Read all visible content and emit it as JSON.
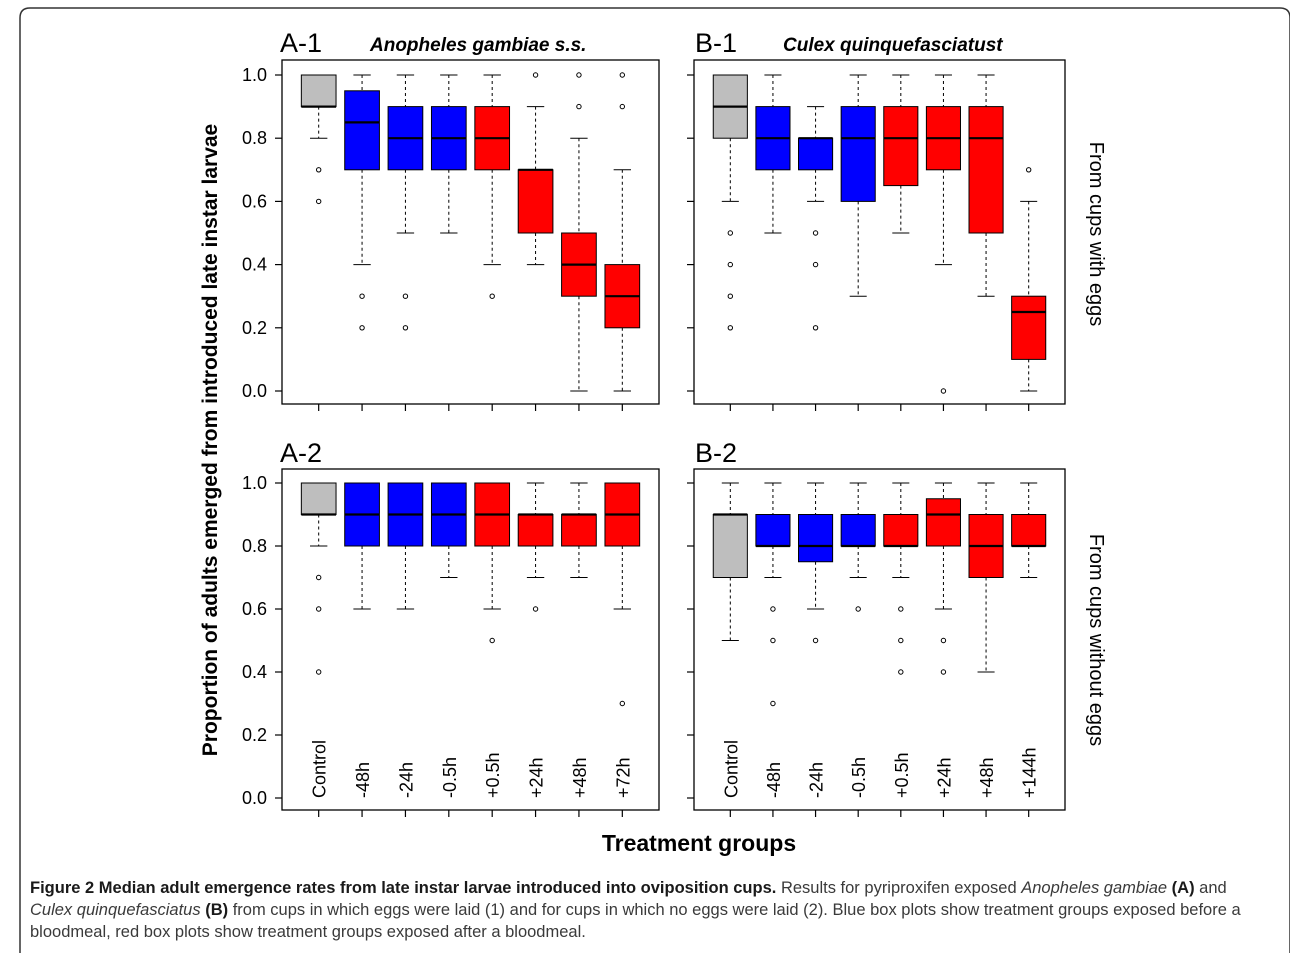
{
  "chart_data": {
    "type": "box",
    "ylabel": "Proportion of adults emerged from introduced late instar larvae",
    "xlabel": "Treatment groups",
    "ylim": [
      0,
      1
    ],
    "yticks": [
      "0.0",
      "0.2",
      "0.4",
      "0.6",
      "0.8",
      "1.0"
    ],
    "grid": false,
    "colors": {
      "control": "#bebebe",
      "before": "#0000ff",
      "after": "#ff0000"
    },
    "row_labels": [
      "From cups with eggs",
      "From cups without eggs"
    ],
    "panels": [
      {
        "id": "A-1",
        "title": "Anopheles gambiae s.s.",
        "categories": [
          "Control",
          "-48h",
          "-24h",
          "-0.5h",
          "+0.5h",
          "+24h",
          "+48h",
          "+72h"
        ],
        "groups": [
          "control",
          "before",
          "before",
          "before",
          "after",
          "after",
          "after",
          "after"
        ],
        "boxes": [
          {
            "q1": 0.9,
            "median": 0.9,
            "q3": 1.0,
            "wlo": 0.8,
            "whi": 1.0,
            "out": [
              0.7,
              0.6
            ]
          },
          {
            "q1": 0.7,
            "median": 0.85,
            "q3": 0.95,
            "wlo": 0.4,
            "whi": 1.0,
            "out": [
              0.3,
              0.2
            ]
          },
          {
            "q1": 0.7,
            "median": 0.8,
            "q3": 0.9,
            "wlo": 0.5,
            "whi": 1.0,
            "out": [
              0.3,
              0.2
            ]
          },
          {
            "q1": 0.7,
            "median": 0.8,
            "q3": 0.9,
            "wlo": 0.5,
            "whi": 1.0,
            "out": []
          },
          {
            "q1": 0.7,
            "median": 0.8,
            "q3": 0.9,
            "wlo": 0.4,
            "whi": 1.0,
            "out": [
              0.3
            ]
          },
          {
            "q1": 0.5,
            "median": 0.7,
            "q3": 0.7,
            "wlo": 0.4,
            "whi": 0.9,
            "out": [
              1.0
            ]
          },
          {
            "q1": 0.3,
            "median": 0.4,
            "q3": 0.5,
            "wlo": 0.0,
            "whi": 0.8,
            "out": [
              1.0,
              0.9
            ]
          },
          {
            "q1": 0.2,
            "median": 0.3,
            "q3": 0.4,
            "wlo": 0.0,
            "whi": 0.7,
            "out": [
              1.0,
              0.9
            ]
          }
        ]
      },
      {
        "id": "B-1",
        "title": "Culex quinquefasciatust",
        "categories": [
          "Control",
          "-48h",
          "-24h",
          "-0.5h",
          "+0.5h",
          "+24h",
          "+48h",
          "+144h"
        ],
        "groups": [
          "control",
          "before",
          "before",
          "before",
          "after",
          "after",
          "after",
          "after"
        ],
        "boxes": [
          {
            "q1": 0.8,
            "median": 0.9,
            "q3": 1.0,
            "wlo": 0.6,
            "whi": 1.0,
            "out": [
              0.5,
              0.4,
              0.3,
              0.2
            ]
          },
          {
            "q1": 0.7,
            "median": 0.8,
            "q3": 0.9,
            "wlo": 0.5,
            "whi": 1.0,
            "out": []
          },
          {
            "q1": 0.7,
            "median": 0.8,
            "q3": 0.8,
            "wlo": 0.6,
            "whi": 0.9,
            "out": [
              0.5,
              0.4,
              0.2
            ]
          },
          {
            "q1": 0.6,
            "median": 0.8,
            "q3": 0.9,
            "wlo": 0.3,
            "whi": 1.0,
            "out": []
          },
          {
            "q1": 0.65,
            "median": 0.8,
            "q3": 0.9,
            "wlo": 0.5,
            "whi": 1.0,
            "out": []
          },
          {
            "q1": 0.7,
            "median": 0.8,
            "q3": 0.9,
            "wlo": 0.4,
            "whi": 1.0,
            "out": [
              0.0
            ]
          },
          {
            "q1": 0.5,
            "median": 0.8,
            "q3": 0.9,
            "wlo": 0.3,
            "whi": 1.0,
            "out": []
          },
          {
            "q1": 0.1,
            "median": 0.25,
            "q3": 0.3,
            "wlo": 0.0,
            "whi": 0.6,
            "out": [
              0.7
            ]
          }
        ]
      },
      {
        "id": "A-2",
        "title": "",
        "categories": [
          "Control",
          "-48h",
          "-24h",
          "-0.5h",
          "+0.5h",
          "+24h",
          "+48h",
          "+72h"
        ],
        "groups": [
          "control",
          "before",
          "before",
          "before",
          "after",
          "after",
          "after",
          "after"
        ],
        "boxes": [
          {
            "q1": 0.9,
            "median": 0.9,
            "q3": 1.0,
            "wlo": 0.8,
            "whi": 1.0,
            "out": [
              0.7,
              0.6,
              0.4
            ]
          },
          {
            "q1": 0.8,
            "median": 0.9,
            "q3": 1.0,
            "wlo": 0.6,
            "whi": 1.0,
            "out": []
          },
          {
            "q1": 0.8,
            "median": 0.9,
            "q3": 1.0,
            "wlo": 0.6,
            "whi": 1.0,
            "out": []
          },
          {
            "q1": 0.8,
            "median": 0.9,
            "q3": 1.0,
            "wlo": 0.7,
            "whi": 1.0,
            "out": []
          },
          {
            "q1": 0.8,
            "median": 0.9,
            "q3": 1.0,
            "wlo": 0.6,
            "whi": 1.0,
            "out": [
              0.5
            ]
          },
          {
            "q1": 0.8,
            "median": 0.9,
            "q3": 0.9,
            "wlo": 0.7,
            "whi": 1.0,
            "out": [
              0.6
            ]
          },
          {
            "q1": 0.8,
            "median": 0.9,
            "q3": 0.9,
            "wlo": 0.7,
            "whi": 1.0,
            "out": []
          },
          {
            "q1": 0.8,
            "median": 0.9,
            "q3": 1.0,
            "wlo": 0.6,
            "whi": 1.0,
            "out": [
              0.3
            ]
          }
        ]
      },
      {
        "id": "B-2",
        "title": "",
        "categories": [
          "Control",
          "-48h",
          "-24h",
          "-0.5h",
          "+0.5h",
          "+24h",
          "+48h",
          "+144h"
        ],
        "groups": [
          "control",
          "before",
          "before",
          "before",
          "after",
          "after",
          "after",
          "after"
        ],
        "boxes": [
          {
            "q1": 0.7,
            "median": 0.9,
            "q3": 0.9,
            "wlo": 0.5,
            "whi": 1.0,
            "out": []
          },
          {
            "q1": 0.8,
            "median": 0.8,
            "q3": 0.9,
            "wlo": 0.7,
            "whi": 1.0,
            "out": [
              0.6,
              0.5,
              0.3
            ]
          },
          {
            "q1": 0.75,
            "median": 0.8,
            "q3": 0.9,
            "wlo": 0.6,
            "whi": 1.0,
            "out": [
              0.5
            ]
          },
          {
            "q1": 0.8,
            "median": 0.8,
            "q3": 0.9,
            "wlo": 0.7,
            "whi": 1.0,
            "out": [
              0.6
            ]
          },
          {
            "q1": 0.8,
            "median": 0.8,
            "q3": 0.9,
            "wlo": 0.7,
            "whi": 1.0,
            "out": [
              0.6,
              0.5,
              0.4
            ]
          },
          {
            "q1": 0.8,
            "median": 0.9,
            "q3": 0.95,
            "wlo": 0.6,
            "whi": 1.0,
            "out": [
              0.5,
              0.4
            ]
          },
          {
            "q1": 0.7,
            "median": 0.8,
            "q3": 0.9,
            "wlo": 0.4,
            "whi": 1.0,
            "out": []
          },
          {
            "q1": 0.8,
            "median": 0.8,
            "q3": 0.9,
            "wlo": 0.7,
            "whi": 1.0,
            "out": []
          }
        ]
      }
    ]
  },
  "caption": {
    "figure_label": "Figure 2",
    "bold_text": "Median adult emergence rates from late instar larvae introduced into oviposition cups.",
    "t1": " Results for pyriproxifen exposed ",
    "sp1": "Anopheles gambiae",
    "b1": " (A)",
    "t2": " and ",
    "sp2": "Culex quinquefasciatus",
    "b2": " (B)",
    "t3": " from cups in which eggs were laid (1) and for cups in which no eggs were laid (2). Blue box plots show treatment groups exposed before a bloodmeal, red box plots show treatment groups exposed after a bloodmeal."
  }
}
